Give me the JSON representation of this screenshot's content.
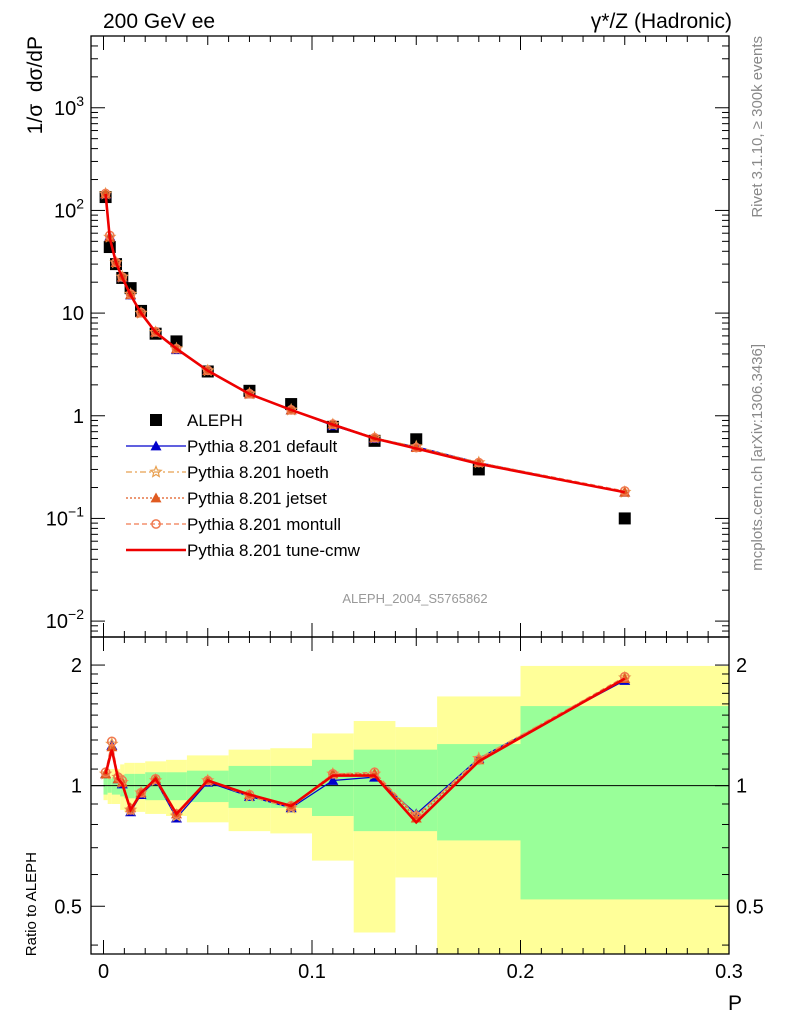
{
  "header": {
    "energy": "200 GeV ee",
    "process": "γ*/Z (Hadronic)"
  },
  "side_labels": {
    "rivet": "Rivet 3.1.10, ≥ 300k events",
    "mcplots": "mcplots.cern.ch [arXiv:1306.3436]"
  },
  "analysis_tag": "ALEPH_2004_S5765862",
  "chart_data": [
    {
      "type": "scatter",
      "panel": "main",
      "ylabel": "1/σ  dσ/dP",
      "yscale": "log",
      "ylim": [
        0.007,
        5000
      ],
      "xlim": [
        -0.006,
        0.3
      ],
      "y_ticks": [
        {
          "value": 1000,
          "label": "10",
          "sup": "3"
        },
        {
          "value": 100,
          "label": "10",
          "sup": "2"
        },
        {
          "value": 10,
          "label": "10",
          "sup": ""
        },
        {
          "value": 1,
          "label": "1",
          "sup": ""
        },
        {
          "value": 0.1,
          "label": "10",
          "sup": "−1"
        },
        {
          "value": 0.01,
          "label": "10",
          "sup": "−2"
        }
      ],
      "data": {
        "name": "ALEPH",
        "color": "#000000",
        "x": [
          0.001,
          0.003,
          0.006,
          0.009,
          0.013,
          0.018,
          0.025,
          0.035,
          0.05,
          0.07,
          0.09,
          0.11,
          0.13,
          0.15,
          0.18,
          0.25
        ],
        "y": [
          135,
          44,
          30,
          22,
          17.5,
          10.5,
          6.3,
          5.3,
          2.7,
          1.75,
          1.3,
          0.78,
          0.57,
          0.59,
          0.3,
          0.1
        ]
      },
      "series": [
        {
          "name": "Pythia 8.201 default",
          "color": "#0000cc",
          "marker": "triangle",
          "dash": "",
          "x": [
            0.001,
            0.003,
            0.006,
            0.009,
            0.013,
            0.018,
            0.025,
            0.035,
            0.05,
            0.07,
            0.09,
            0.11,
            0.13,
            0.15,
            0.18,
            0.25
          ],
          "y": [
            144,
            56,
            31,
            22.2,
            15,
            10,
            6.5,
            4.4,
            2.75,
            1.63,
            1.14,
            0.8,
            0.6,
            0.5,
            0.35,
            0.18
          ]
        },
        {
          "name": "Pythia 8.201 hoeth",
          "color": "#e8a050",
          "marker": "star",
          "dash": "6,3,2,3",
          "x": [
            0.001,
            0.003,
            0.006,
            0.009,
            0.013,
            0.018,
            0.025,
            0.035,
            0.05,
            0.07,
            0.09,
            0.11,
            0.13,
            0.15,
            0.18,
            0.25
          ],
          "y": [
            145,
            55,
            31,
            22.5,
            15.3,
            10,
            6.5,
            4.5,
            2.75,
            1.64,
            1.14,
            0.82,
            0.61,
            0.5,
            0.35,
            0.18
          ]
        },
        {
          "name": "Pythia 8.201 jetset",
          "color": "#e05a20",
          "marker": "triangle",
          "dash": "2,2",
          "x": [
            0.001,
            0.003,
            0.006,
            0.009,
            0.013,
            0.018,
            0.025,
            0.035,
            0.05,
            0.07,
            0.09,
            0.11,
            0.13,
            0.15,
            0.18,
            0.25
          ],
          "y": [
            145,
            55,
            31,
            22.4,
            15.2,
            10,
            6.5,
            4.5,
            2.75,
            1.63,
            1.14,
            0.83,
            0.61,
            0.49,
            0.35,
            0.18
          ]
        },
        {
          "name": "Pythia 8.201 montull",
          "color": "#f07a50",
          "marker": "circle",
          "dash": "5,3",
          "x": [
            0.001,
            0.003,
            0.006,
            0.009,
            0.013,
            0.018,
            0.025,
            0.035,
            0.05,
            0.07,
            0.09,
            0.11,
            0.13,
            0.15,
            0.18,
            0.25
          ],
          "y": [
            146,
            57,
            31.2,
            22.5,
            15.3,
            10.1,
            6.6,
            4.5,
            2.77,
            1.64,
            1.14,
            0.83,
            0.61,
            0.49,
            0.35,
            0.185
          ]
        },
        {
          "name": "Pythia 8.201 tune-cmw",
          "color": "#ee0000",
          "marker": "none",
          "dash": "",
          "x": [
            0.001,
            0.003,
            0.006,
            0.009,
            0.013,
            0.018,
            0.025,
            0.035,
            0.05,
            0.07,
            0.09,
            0.11,
            0.13,
            0.15,
            0.18,
            0.25
          ],
          "y": [
            145,
            54,
            31,
            22.2,
            15,
            10,
            6.5,
            4.5,
            2.75,
            1.63,
            1.14,
            0.82,
            0.6,
            0.48,
            0.34,
            0.18
          ]
        }
      ]
    },
    {
      "type": "line",
      "panel": "ratio",
      "ylabel": "Ratio to ALEPH",
      "xlabel": "P",
      "yscale": "log",
      "ylim": [
        0.38,
        2.35
      ],
      "xlim": [
        -0.006,
        0.3
      ],
      "x_ticks": [
        {
          "value": 0,
          "label": "0"
        },
        {
          "value": 0.1,
          "label": "0.1"
        },
        {
          "value": 0.2,
          "label": "0.2"
        },
        {
          "value": 0.3,
          "label": "0.3"
        }
      ],
      "y_ticks": [
        {
          "value": 2,
          "label": "2"
        },
        {
          "value": 1,
          "label": "1"
        },
        {
          "value": 0.5,
          "label": "0.5"
        }
      ],
      "bands": {
        "bin_edges": [
          0,
          0.002,
          0.004,
          0.008,
          0.01,
          0.015,
          0.02,
          0.03,
          0.04,
          0.06,
          0.08,
          0.1,
          0.12,
          0.14,
          0.16,
          0.2,
          0.3
        ],
        "inner_low": [
          0.95,
          0.96,
          0.95,
          0.94,
          0.93,
          0.93,
          0.92,
          0.92,
          0.91,
          0.88,
          0.88,
          0.84,
          0.77,
          0.77,
          0.73,
          0.52
        ],
        "inner_high": [
          1.05,
          1.04,
          1.05,
          1.06,
          1.07,
          1.07,
          1.08,
          1.08,
          1.09,
          1.12,
          1.12,
          1.16,
          1.23,
          1.23,
          1.27,
          1.58
        ],
        "outer_low": [
          0.92,
          0.9,
          0.9,
          0.87,
          0.86,
          0.86,
          0.85,
          0.84,
          0.81,
          0.77,
          0.76,
          0.65,
          0.43,
          0.59,
          0.35,
          0.35
        ],
        "outer_high": [
          1.08,
          1.1,
          1.1,
          1.13,
          1.14,
          1.14,
          1.15,
          1.16,
          1.19,
          1.23,
          1.24,
          1.35,
          1.45,
          1.4,
          1.67,
          1.99
        ],
        "inner_color": "#99ff99",
        "outer_color": "#ffff99"
      },
      "series": [
        {
          "name": "Pythia 8.201 default",
          "color": "#0000cc",
          "marker": "triangle",
          "dash": "",
          "x": [
            0.001,
            0.004,
            0.007,
            0.009,
            0.013,
            0.018,
            0.025,
            0.035,
            0.05,
            0.07,
            0.09,
            0.11,
            0.13,
            0.15,
            0.18,
            0.25
          ],
          "y": [
            1.07,
            1.26,
            1.04,
            1.01,
            0.86,
            0.95,
            1.03,
            0.83,
            1.02,
            0.94,
            0.88,
            1.03,
            1.05,
            0.85,
            1.17,
            1.83
          ]
        },
        {
          "name": "Pythia 8.201 hoeth",
          "color": "#e8a050",
          "marker": "star",
          "dash": "6,3,2,3",
          "x": [
            0.001,
            0.004,
            0.007,
            0.009,
            0.013,
            0.018,
            0.025,
            0.035,
            0.05,
            0.07,
            0.09,
            0.11,
            0.13,
            0.15,
            0.18,
            0.25
          ],
          "y": [
            1.07,
            1.27,
            1.05,
            1.02,
            0.87,
            0.96,
            1.03,
            0.84,
            1.03,
            0.94,
            0.88,
            1.07,
            1.07,
            0.84,
            1.17,
            1.86
          ]
        },
        {
          "name": "Pythia 8.201 jetset",
          "color": "#e05a20",
          "marker": "triangle",
          "dash": "2,2",
          "x": [
            0.001,
            0.004,
            0.007,
            0.009,
            0.013,
            0.018,
            0.025,
            0.035,
            0.05,
            0.07,
            0.09,
            0.11,
            0.13,
            0.15,
            0.18,
            0.25
          ],
          "y": [
            1.07,
            1.25,
            1.04,
            1.02,
            0.88,
            0.96,
            1.04,
            0.85,
            1.03,
            0.95,
            0.89,
            1.07,
            1.07,
            0.83,
            1.16,
            1.85
          ]
        },
        {
          "name": "Pythia 8.201 montull",
          "color": "#f07a50",
          "marker": "circle",
          "dash": "5,3",
          "x": [
            0.001,
            0.004,
            0.007,
            0.009,
            0.013,
            0.018,
            0.025,
            0.035,
            0.05,
            0.07,
            0.09,
            0.11,
            0.13,
            0.15,
            0.18,
            0.25
          ],
          "y": [
            1.08,
            1.29,
            1.05,
            1.03,
            0.87,
            0.96,
            1.04,
            0.85,
            1.03,
            0.95,
            0.89,
            1.07,
            1.08,
            0.84,
            1.16,
            1.87
          ]
        },
        {
          "name": "Pythia 8.201 tune-cmw",
          "color": "#ee0000",
          "marker": "none",
          "dash": "",
          "x": [
            0.001,
            0.004,
            0.007,
            0.009,
            0.013,
            0.018,
            0.025,
            0.035,
            0.05,
            0.07,
            0.09,
            0.11,
            0.13,
            0.15,
            0.18,
            0.25
          ],
          "y": [
            1.07,
            1.23,
            1.04,
            1.01,
            0.87,
            0.96,
            1.04,
            0.85,
            1.03,
            0.95,
            0.89,
            1.06,
            1.06,
            0.81,
            1.15,
            1.85
          ]
        }
      ]
    }
  ]
}
